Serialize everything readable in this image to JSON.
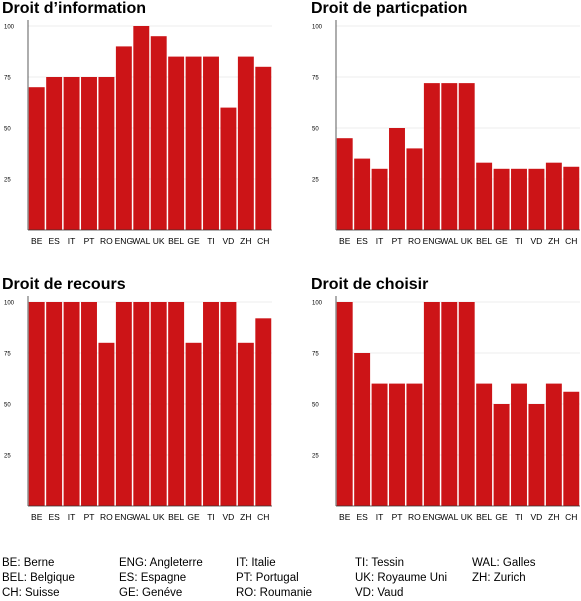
{
  "colors": {
    "bar": "#cc1417",
    "axis": "#333333",
    "grid": "#d9d9d9",
    "text": "#000000"
  },
  "chart_data": [
    {
      "type": "bar",
      "title": "Droit d’information",
      "categories": [
        "BE",
        "ES",
        "IT",
        "PT",
        "RO",
        "ENG",
        "WAL",
        "UK",
        "BEL",
        "GE",
        "TI",
        "VD",
        "ZH",
        "CH"
      ],
      "values": [
        70,
        75,
        75,
        75,
        75,
        90,
        100,
        95,
        85,
        85,
        85,
        60,
        85,
        80
      ],
      "ylim": [
        0,
        100
      ],
      "yticks": [
        "25",
        "50",
        "75",
        "100"
      ]
    },
    {
      "type": "bar",
      "title": "Droit de particpation",
      "categories": [
        "BE",
        "ES",
        "IT",
        "PT",
        "RO",
        "ENG",
        "WAL",
        "UK",
        "BEL",
        "GE",
        "TI",
        "VD",
        "ZH",
        "CH"
      ],
      "values": [
        45,
        35,
        30,
        50,
        40,
        72,
        72,
        72,
        33,
        30,
        30,
        30,
        33,
        31
      ],
      "ylim": [
        0,
        100
      ],
      "yticks": [
        "25",
        "50",
        "75",
        "100"
      ]
    },
    {
      "type": "bar",
      "title": "Droit de recours",
      "categories": [
        "BE",
        "ES",
        "IT",
        "PT",
        "RO",
        "ENG",
        "WAL",
        "UK",
        "BEL",
        "GE",
        "TI",
        "VD",
        "ZH",
        "CH"
      ],
      "values": [
        100,
        100,
        100,
        100,
        80,
        100,
        100,
        100,
        100,
        80,
        100,
        100,
        80,
        92
      ],
      "ylim": [
        0,
        100
      ],
      "yticks": [
        "25",
        "50",
        "75",
        "100"
      ]
    },
    {
      "type": "bar",
      "title": "Droit de choisir",
      "categories": [
        "BE",
        "ES",
        "IT",
        "PT",
        "RO",
        "ENG",
        "WAL",
        "UK",
        "BEL",
        "GE",
        "TI",
        "VD",
        "ZH",
        "CH"
      ],
      "values": [
        100,
        75,
        60,
        60,
        60,
        100,
        100,
        100,
        60,
        50,
        60,
        50,
        60,
        56
      ],
      "ylim": [
        0,
        100
      ],
      "yticks": [
        "25",
        "50",
        "75",
        "100"
      ]
    }
  ],
  "legend": [
    [
      "BE: Berne",
      "BEL: Belgique",
      "CH: Suisse"
    ],
    [
      "ENG: Angleterre",
      "ES: Espagne",
      "GE: Genéve"
    ],
    [
      "IT: Italie",
      "PT: Portugal",
      "RO: Roumanie"
    ],
    [
      "TI: Tessin",
      "UK: Royaume Uni",
      "VD: Vaud"
    ],
    [
      "WAL: Galles",
      "ZH: Zurich"
    ]
  ]
}
